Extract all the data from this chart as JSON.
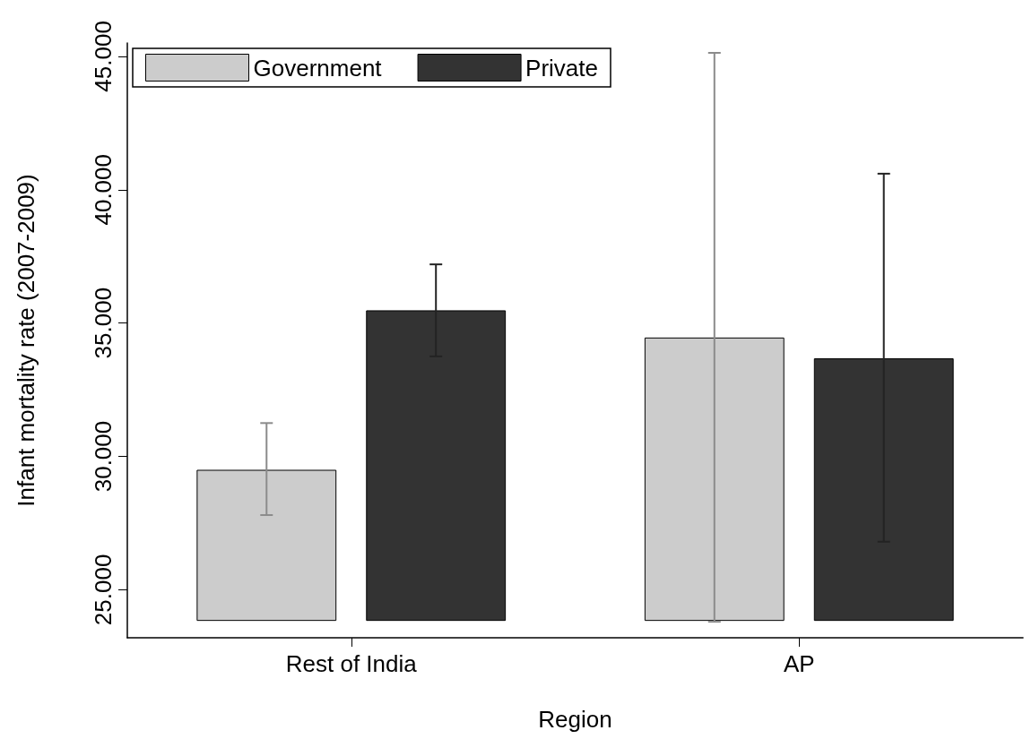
{
  "chart_data": {
    "type": "bar",
    "xlabel": "Region",
    "ylabel": "Infant mortality rate (2007-2009)",
    "categories": [
      "Rest of India",
      "AP"
    ],
    "series": [
      {
        "name": "Government",
        "color": "#cccccc",
        "base": [
          23.85,
          23.85
        ],
        "values": [
          5.63,
          10.59
        ],
        "errors": [
          [
            27.8,
            31.25
          ],
          [
            23.8,
            45.13
          ]
        ]
      },
      {
        "name": "Private",
        "color": "#333333",
        "base": [
          23.85,
          23.85
        ],
        "values": [
          11.61,
          9.81
        ],
        "errors": [
          [
            33.75,
            37.2
          ],
          [
            26.8,
            40.6
          ]
        ]
      }
    ],
    "ylim": [
      23.2,
      45.5
    ],
    "yticks": [
      {
        "value": 25,
        "label": "25.000"
      },
      {
        "value": 30,
        "label": "30.000"
      },
      {
        "value": 35,
        "label": "35.000"
      },
      {
        "value": 40,
        "label": "40.000"
      },
      {
        "value": 45,
        "label": "45.000"
      }
    ],
    "grid": false,
    "legend": "top left"
  }
}
